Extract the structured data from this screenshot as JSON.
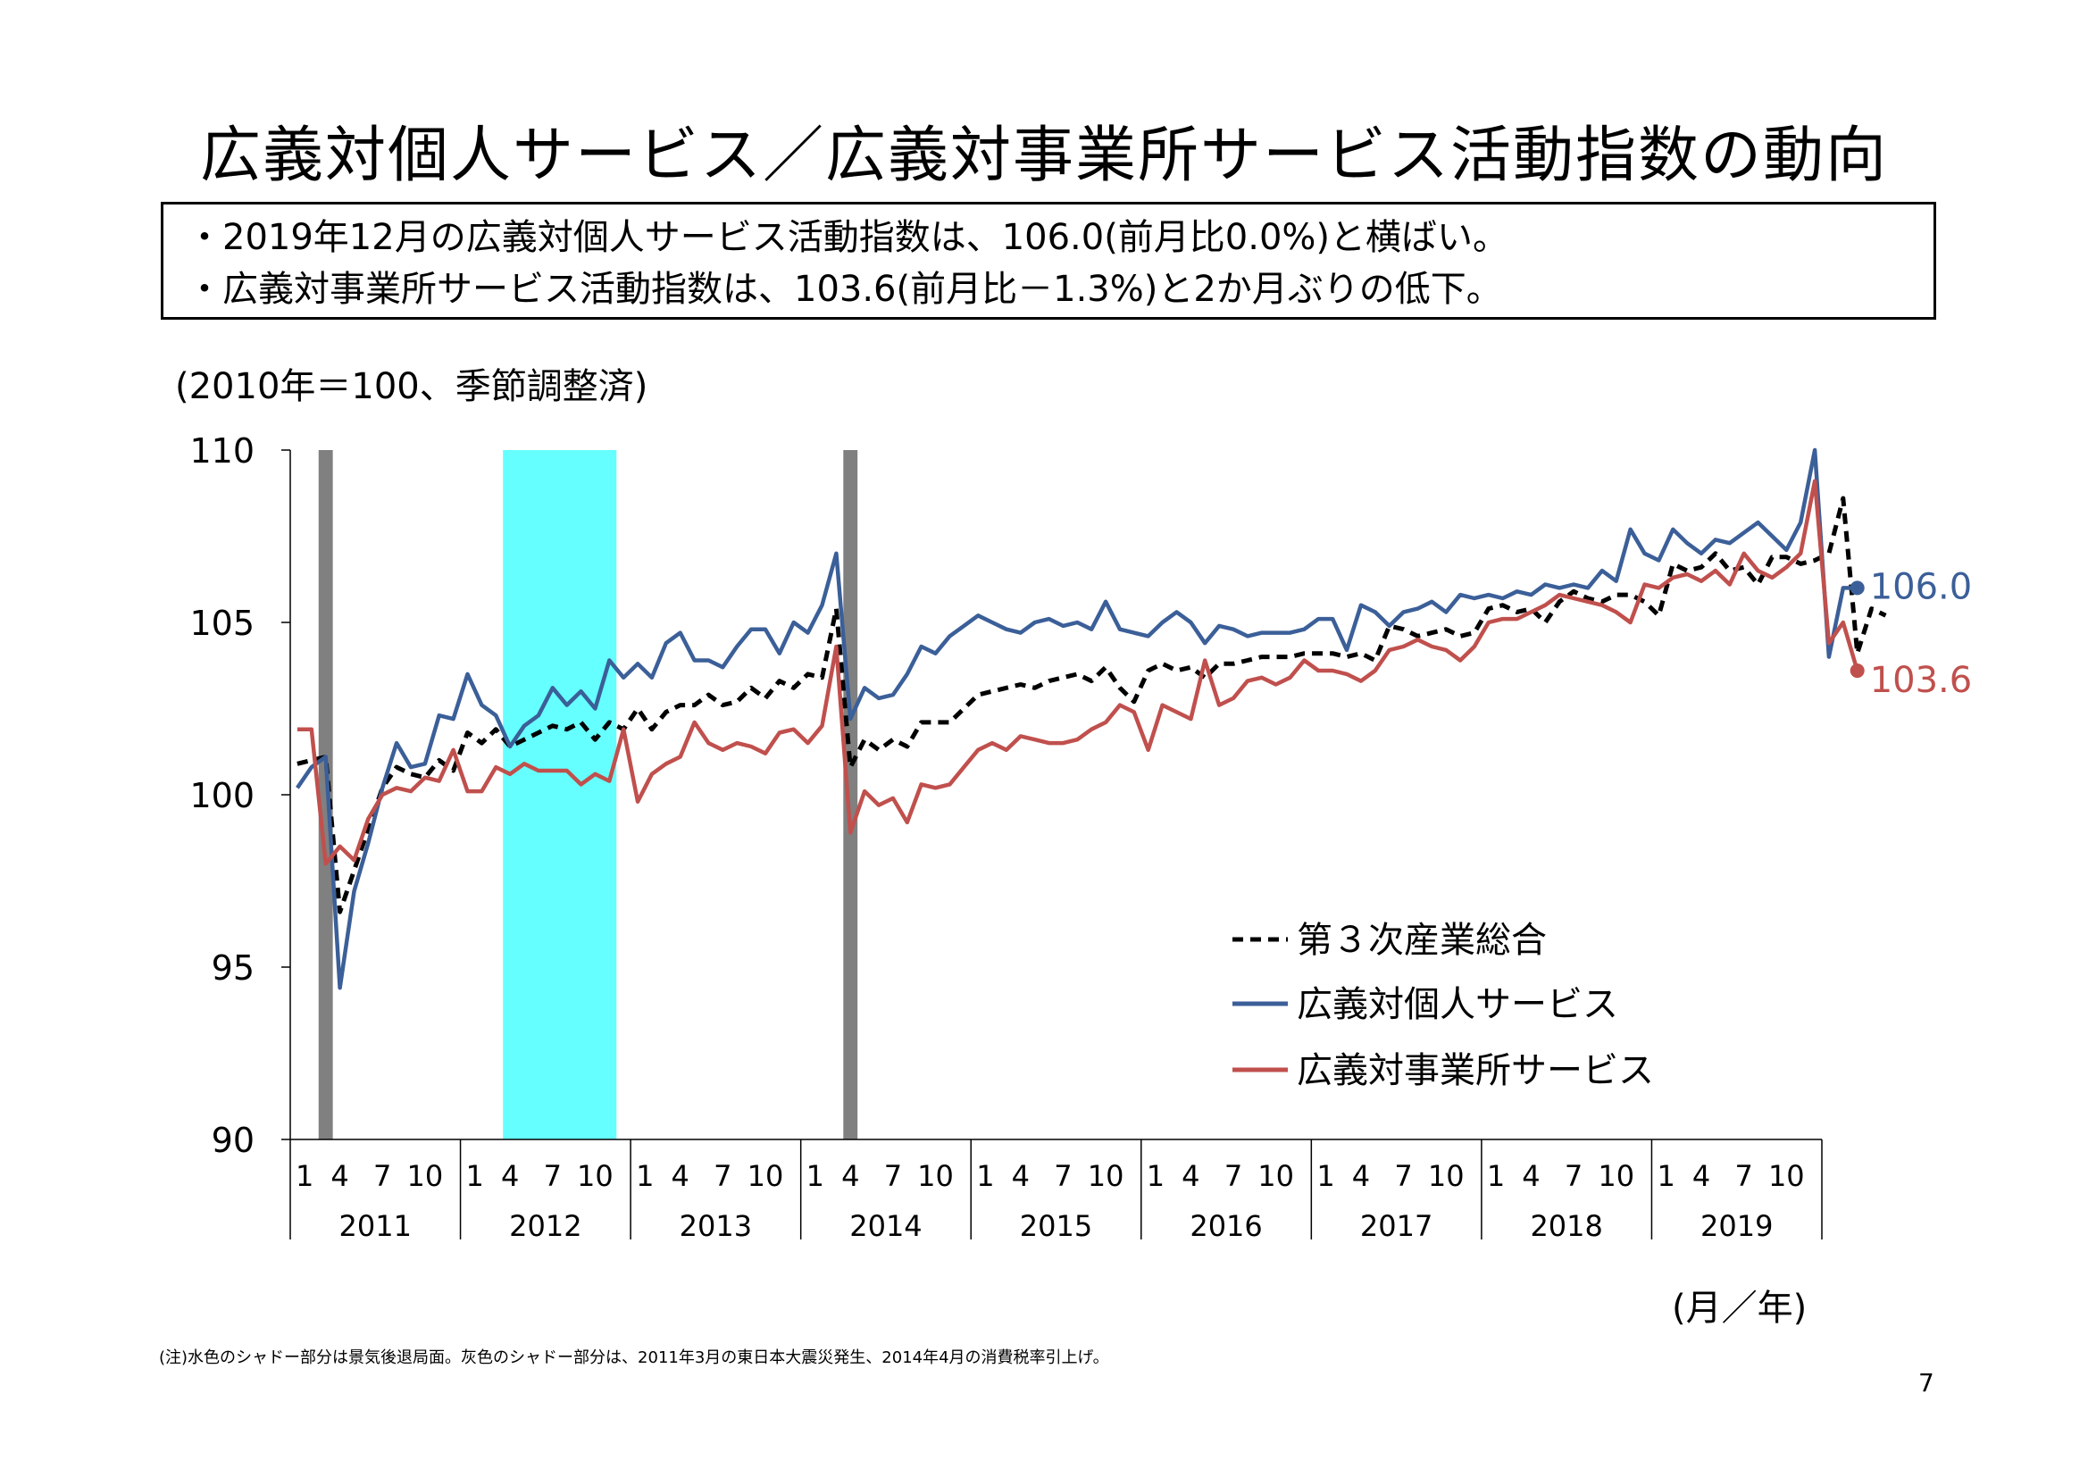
{
  "title": "広義対個人サービス／広義対事業所サービス活動指数の動向",
  "summary": [
    "・2019年12月の広義対個人サービス活動指数は、106.0(前月比0.0%)と横ばい。",
    "・広義対事業所サービス活動指数は、103.6(前月比－1.3%)と2か月ぶりの低下。"
  ],
  "unit_note": "(2010年＝100、季節調整済)",
  "x_axis_unit": "(月／年)",
  "footnote": "(注)水色のシャドー部分は景気後退局面。灰色のシャドー部分は、2011年3月の東日本大震災発生、2014年4月の消費税率引上げ。",
  "page_number": "7",
  "chart_data": {
    "type": "line",
    "ylim": [
      90,
      110
    ],
    "yticks": [
      "90",
      "95",
      "100",
      "105",
      "110"
    ],
    "month_ticks": [
      "1",
      "4",
      "7",
      "10"
    ],
    "years": [
      "2011",
      "2012",
      "2013",
      "2014",
      "2015",
      "2016",
      "2017",
      "2018",
      "2019"
    ],
    "shading": [
      {
        "kind": "disaster",
        "start": "2011-03",
        "end": "2011-03",
        "color": "#808080"
      },
      {
        "kind": "recession",
        "start": "2012-04",
        "end": "2012-11",
        "color": "#66ffff"
      },
      {
        "kind": "tax-hike",
        "start": "2014-04",
        "end": "2014-04",
        "color": "#808080"
      }
    ],
    "end_labels": [
      {
        "series": "広義対個人サービス",
        "text": "106.0"
      },
      {
        "series": "広義対事業所サービス",
        "text": "103.6"
      }
    ],
    "legend_position": "right-center",
    "series": [
      {
        "name": "第３次産業総合",
        "color": "#000000",
        "style": "dashed",
        "values": [
          100.9,
          101.0,
          101.1,
          96.6,
          97.8,
          99.0,
          100.2,
          100.8,
          100.6,
          100.5,
          101.0,
          100.7,
          101.8,
          101.5,
          101.9,
          101.4,
          101.6,
          101.8,
          102.0,
          101.9,
          102.1,
          101.6,
          102.1,
          101.9,
          102.5,
          101.9,
          102.4,
          102.6,
          102.6,
          102.9,
          102.6,
          102.7,
          103.1,
          102.8,
          103.3,
          103.1,
          103.5,
          103.4,
          105.4,
          100.8,
          101.6,
          101.3,
          101.6,
          101.4,
          102.1,
          102.1,
          102.1,
          102.5,
          102.9,
          103.0,
          103.1,
          103.2,
          103.1,
          103.3,
          103.4,
          103.5,
          103.3,
          103.7,
          103.1,
          102.7,
          103.6,
          103.8,
          103.6,
          103.7,
          103.4,
          103.8,
          103.8,
          103.9,
          104.0,
          104.0,
          104.0,
          104.1,
          104.1,
          104.1,
          104.0,
          104.1,
          103.9,
          104.9,
          104.8,
          104.6,
          104.7,
          104.8,
          104.6,
          104.7,
          105.4,
          105.5,
          105.3,
          105.4,
          105.0,
          105.6,
          105.9,
          105.7,
          105.6,
          105.8,
          105.8,
          105.6,
          105.2,
          106.7,
          106.5,
          106.6,
          107.0,
          106.5,
          106.6,
          106.1,
          106.9,
          106.9,
          106.7,
          106.8,
          107.0,
          108.6,
          104.1,
          105.4,
          105.2
        ]
      },
      {
        "name": "広義対個人サービス",
        "color": "#3b5f98",
        "style": "solid",
        "values": [
          100.2,
          100.8,
          101.1,
          94.4,
          97.2,
          98.6,
          100.2,
          101.5,
          100.8,
          100.9,
          102.3,
          102.2,
          103.5,
          102.6,
          102.3,
          101.4,
          102.0,
          102.3,
          103.1,
          102.6,
          103.0,
          102.5,
          103.9,
          103.4,
          103.8,
          103.4,
          104.4,
          104.7,
          103.9,
          103.9,
          103.7,
          104.3,
          104.8,
          104.8,
          104.1,
          105.0,
          104.7,
          105.5,
          107.0,
          102.2,
          103.1,
          102.8,
          102.9,
          103.5,
          104.3,
          104.1,
          104.6,
          104.9,
          105.2,
          105.0,
          104.8,
          104.7,
          105.0,
          105.1,
          104.9,
          105.0,
          104.8,
          105.6,
          104.8,
          104.7,
          104.6,
          105.0,
          105.3,
          105.0,
          104.4,
          104.9,
          104.8,
          104.6,
          104.7,
          104.7,
          104.7,
          104.8,
          105.1,
          105.1,
          104.2,
          105.5,
          105.3,
          104.9,
          105.3,
          105.4,
          105.6,
          105.3,
          105.8,
          105.7,
          105.8,
          105.7,
          105.9,
          105.8,
          106.1,
          106.0,
          106.1,
          106.0,
          106.5,
          106.2,
          107.7,
          107.0,
          106.8,
          107.7,
          107.3,
          107.0,
          107.4,
          107.3,
          107.6,
          107.9,
          107.5,
          107.1,
          107.9,
          110.0,
          104.0,
          106.0,
          106.0
        ]
      },
      {
        "name": "広義対事業所サービス",
        "color": "#c0504d",
        "style": "solid",
        "values": [
          101.9,
          101.9,
          98.0,
          98.5,
          98.1,
          99.3,
          100.0,
          100.2,
          100.1,
          100.5,
          100.4,
          101.3,
          100.1,
          100.1,
          100.8,
          100.6,
          100.9,
          100.7,
          100.7,
          100.7,
          100.3,
          100.6,
          100.4,
          101.9,
          99.8,
          100.6,
          100.9,
          101.1,
          102.1,
          101.5,
          101.3,
          101.5,
          101.4,
          101.2,
          101.8,
          101.9,
          101.5,
          102.0,
          104.3,
          98.9,
          100.1,
          99.7,
          99.9,
          99.2,
          100.3,
          100.2,
          100.3,
          100.8,
          101.3,
          101.5,
          101.3,
          101.7,
          101.6,
          101.5,
          101.5,
          101.6,
          101.9,
          102.1,
          102.6,
          102.4,
          101.3,
          102.6,
          102.4,
          102.2,
          103.9,
          102.6,
          102.8,
          103.3,
          103.4,
          103.2,
          103.4,
          103.9,
          103.6,
          103.6,
          103.5,
          103.3,
          103.6,
          104.2,
          104.3,
          104.5,
          104.3,
          104.2,
          103.9,
          104.3,
          105.0,
          105.1,
          105.1,
          105.3,
          105.5,
          105.8,
          105.7,
          105.6,
          105.5,
          105.3,
          105.0,
          106.1,
          106.0,
          106.3,
          106.4,
          106.2,
          106.5,
          106.1,
          107.0,
          106.5,
          106.3,
          106.6,
          107.0,
          109.1,
          104.4,
          105.0,
          103.6
        ]
      }
    ]
  }
}
